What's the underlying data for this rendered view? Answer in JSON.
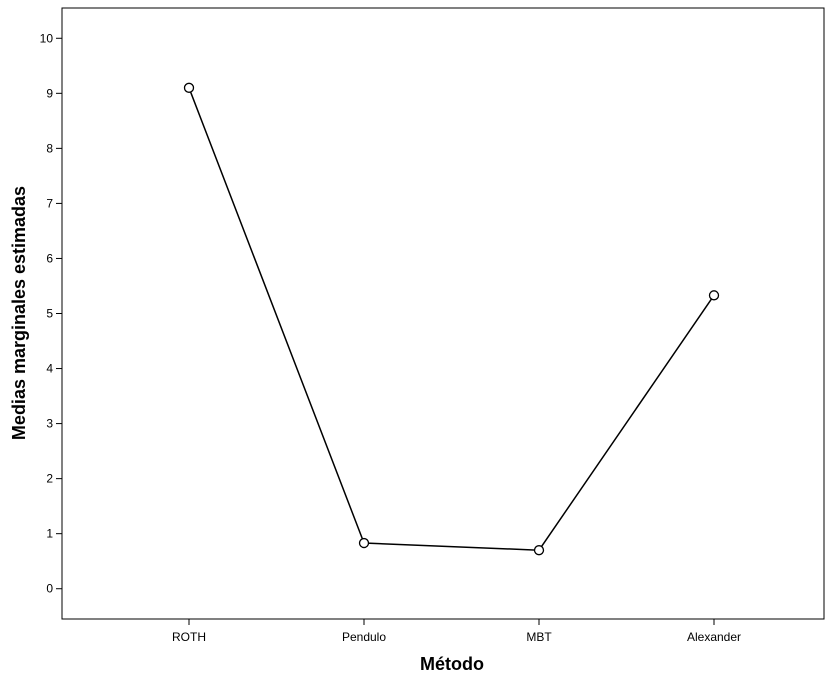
{
  "chart_data": {
    "type": "line",
    "xlabel": "Método",
    "ylabel": "Medias marginales estimadas",
    "categories": [
      "ROTH",
      "Pendulo",
      "MBT",
      "Alexander"
    ],
    "series": [
      {
        "values": [
          9.1,
          0.83,
          0.7,
          5.33
        ]
      }
    ],
    "ylim": [
      -0.55,
      10.55
    ],
    "yticks": [
      0,
      1,
      2,
      3,
      4,
      5,
      6,
      7,
      8,
      9,
      10
    ],
    "grid": false,
    "legend": "none",
    "marker": "open-circle",
    "line_color": "#000000"
  }
}
